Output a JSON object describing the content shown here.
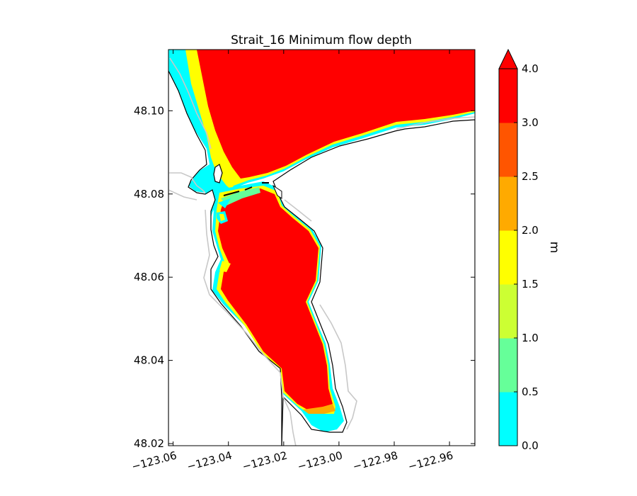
{
  "chart_data": {
    "type": "heatmap",
    "title": "Strait_16 Minimum flow depth",
    "xlabel": "",
    "ylabel": "",
    "xlim": [
      -123.0617,
      -122.9508
    ],
    "ylim": [
      48.0195,
      48.1147
    ],
    "x_ticks": [
      -123.06,
      -123.04,
      -123.02,
      -123.0,
      -122.98,
      -122.96
    ],
    "x_tick_labels": [
      "−123.06",
      "−123.04",
      "−123.02",
      "−123.00",
      "−122.98",
      "−122.96"
    ],
    "y_ticks": [
      48.02,
      48.04,
      48.06,
      48.08,
      48.1
    ],
    "y_tick_labels": [
      "48.02",
      "48.04",
      "48.06",
      "48.08",
      "48.10"
    ],
    "colorbar": {
      "label": "m",
      "extend": "max",
      "range": [
        0.0,
        4.0
      ],
      "levels": [
        {
          "from": 0.0,
          "to": 0.5,
          "color": "#00ffff"
        },
        {
          "from": 0.5,
          "to": 1.0,
          "color": "#66ff99"
        },
        {
          "from": 1.0,
          "to": 1.5,
          "color": "#ccff33"
        },
        {
          "from": 1.5,
          "to": 2.0,
          "color": "#ffff00"
        },
        {
          "from": 2.0,
          "to": 2.5,
          "color": "#ffaa00"
        },
        {
          "from": 2.5,
          "to": 3.0,
          "color": "#ff5500"
        },
        {
          "from": 3.0,
          "to": 4.0,
          "color": "#ff0000"
        }
      ],
      "extend_color": "#ff0000",
      "tick_values": [
        0.0,
        0.5,
        1.0,
        1.5,
        2.0,
        2.5,
        3.0,
        4.0
      ],
      "tick_labels": [
        "0.0",
        "0.5",
        "1.0",
        "1.5",
        "2.0",
        "2.5",
        "3.0",
        "4.0"
      ]
    }
  }
}
